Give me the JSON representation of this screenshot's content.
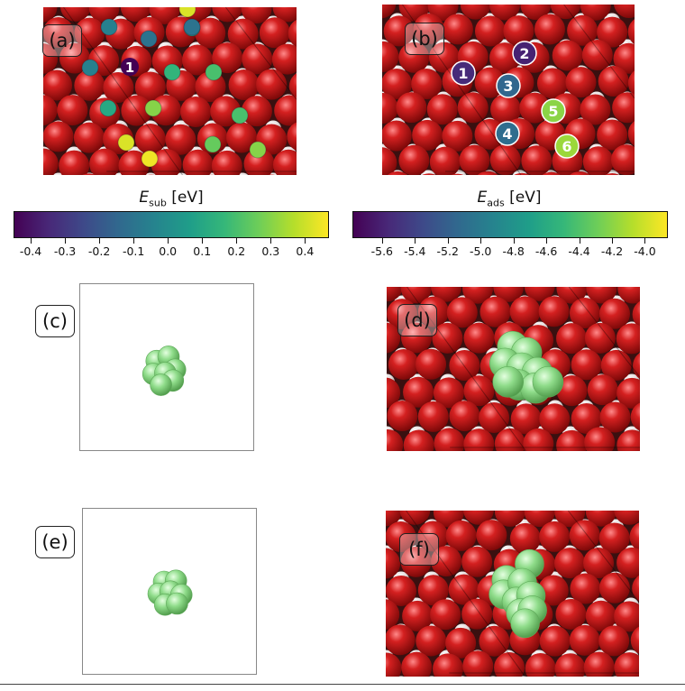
{
  "panels": {
    "a": {
      "tag": "(a)",
      "site_labels": [
        "1"
      ]
    },
    "b": {
      "tag": "(b)",
      "site_labels": [
        "1",
        "2",
        "3",
        "4",
        "5",
        "6"
      ]
    },
    "c": {
      "tag": "(c)"
    },
    "d": {
      "tag": "(d)"
    },
    "e": {
      "tag": "(e)"
    },
    "f": {
      "tag": "(f)"
    }
  },
  "colorbars": {
    "sub": {
      "var": "E",
      "sub": "sub",
      "unit": " [eV]",
      "min": -0.45,
      "max": 0.47,
      "ticks": [
        "-0.4",
        "-0.3",
        "-0.2",
        "-0.1",
        "0.0",
        "0.1",
        "0.2",
        "0.3",
        "0.4"
      ],
      "tick_values": [
        -0.4,
        -0.3,
        -0.2,
        -0.1,
        0.0,
        0.1,
        0.2,
        0.3,
        0.4
      ]
    },
    "ads": {
      "var": "E",
      "sub": "ads",
      "unit": " [eV]",
      "min": -5.78,
      "max": -3.86,
      "ticks": [
        "-5.6",
        "-5.4",
        "-5.2",
        "-5.0",
        "-4.8",
        "-4.6",
        "-4.4",
        "-4.2",
        "-4.0"
      ],
      "tick_values": [
        -5.6,
        -5.4,
        -5.2,
        -5.0,
        -4.8,
        -4.6,
        -4.4,
        -4.2,
        -4.0
      ]
    }
  },
  "colors": {
    "oxygen_red": "#d42020",
    "white_atom": "#e4dede",
    "cluster_green": "#8fdc8a",
    "colormap": "viridis"
  }
}
